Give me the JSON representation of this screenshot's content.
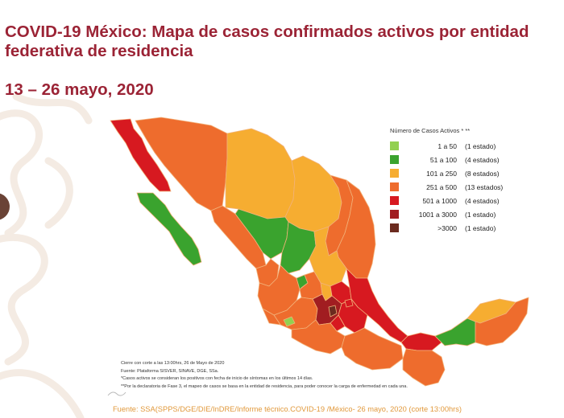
{
  "header": {
    "title": "COVID-19 México: Mapa de casos confirmados activos por entidad federativa de residencia",
    "dates": "13 – 26 mayo, 2020"
  },
  "legend": {
    "title": "Número de Casos Activos * **",
    "items": [
      {
        "range": "1 a 50",
        "count": "(1 estado)",
        "color": "#92d050"
      },
      {
        "range": "51 a 100",
        "count": "(4 estados)",
        "color": "#3aa32e"
      },
      {
        "range": "101 a 250",
        "count": "(8 estados)",
        "color": "#f6ad31"
      },
      {
        "range": "251 a 500",
        "count": "(13 estados)",
        "color": "#ee6c2d"
      },
      {
        "range": "501 a 1000",
        "count": "(4 estados)",
        "color": "#d71920"
      },
      {
        "range": "1001 a 3000",
        "count": "(1 estado)",
        "color": "#a11d21"
      },
      {
        "range": ">3000",
        "count": "(1 estado)",
        "color": "#6b2b1f"
      }
    ]
  },
  "notes": {
    "line1": "Cierre con corte a las 13:00hrs, 26 de Mayo de 2020",
    "line2": "Fuente: Plataforma SISVER, SINAVE, DGE, SSa.",
    "line3": "*Casos activos se consideran los positivos con fecha de inicio de síntomas en los últimos 14 días.",
    "line4": "**Por la declaratoria de Fase 3, el mapeo de casos se basa en la entidad de residencia, para poder conocer la carga de enfermedad en cada una."
  },
  "footer": {
    "source": "Fuente: SSA(SPPS/DGE/DIE/InDRE/Informe técnico.COVID-19 /México- 26 mayo, 2020 (corte 13:00hrs)"
  },
  "colors": {
    "title": "#9b2335",
    "source": "#e1993c",
    "range_1_50": "#92d050",
    "range_51_100": "#3aa32e",
    "range_101_250": "#f6ad31",
    "range_251_500": "#ee6c2d",
    "range_501_1000": "#d71920",
    "range_1001_3000": "#a11d21",
    "range_over_3000": "#6b2b1f"
  }
}
